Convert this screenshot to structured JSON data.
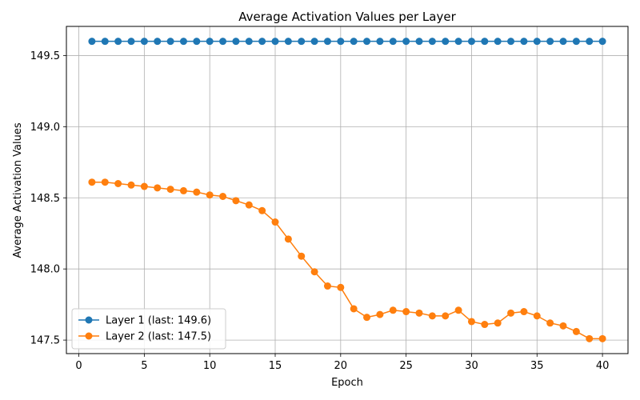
{
  "chart_data": {
    "type": "line",
    "title": "Average Activation Values per Layer",
    "xlabel": "Epoch",
    "ylabel": "Average Activation Values",
    "xlim": [
      -0.95,
      41.95
    ],
    "ylim": [
      147.405,
      149.705
    ],
    "xticks": [
      0,
      5,
      10,
      15,
      20,
      25,
      30,
      35,
      40
    ],
    "xtick_labels": [
      "0",
      "5",
      "10",
      "15",
      "20",
      "25",
      "30",
      "35",
      "40"
    ],
    "yticks": [
      147.5,
      148.0,
      148.5,
      149.0,
      149.5
    ],
    "ytick_labels": [
      "147.5",
      "148.0",
      "148.5",
      "149.0",
      "149.5"
    ],
    "grid": true,
    "legend_position": "lower-left",
    "x": [
      1,
      2,
      3,
      4,
      5,
      6,
      7,
      8,
      9,
      10,
      11,
      12,
      13,
      14,
      15,
      16,
      17,
      18,
      19,
      20,
      21,
      22,
      23,
      24,
      25,
      26,
      27,
      28,
      29,
      30,
      31,
      32,
      33,
      34,
      35,
      36,
      37,
      38,
      39,
      40
    ],
    "series": [
      {
        "name": "Layer 1 (last: 149.6)",
        "color": "#1f77b4",
        "values": [
          149.6,
          149.6,
          149.6,
          149.6,
          149.6,
          149.6,
          149.6,
          149.6,
          149.6,
          149.6,
          149.6,
          149.6,
          149.6,
          149.6,
          149.6,
          149.6,
          149.6,
          149.6,
          149.6,
          149.6,
          149.6,
          149.6,
          149.6,
          149.6,
          149.6,
          149.6,
          149.6,
          149.6,
          149.6,
          149.6,
          149.6,
          149.6,
          149.6,
          149.6,
          149.6,
          149.6,
          149.6,
          149.6,
          149.6,
          149.6
        ]
      },
      {
        "name": "Layer 2 (last: 147.5)",
        "color": "#ff7f0e",
        "values": [
          148.61,
          148.61,
          148.6,
          148.59,
          148.58,
          148.57,
          148.56,
          148.55,
          148.54,
          148.52,
          148.51,
          148.48,
          148.45,
          148.41,
          148.33,
          148.21,
          148.09,
          147.98,
          147.88,
          147.87,
          147.72,
          147.66,
          147.68,
          147.71,
          147.7,
          147.69,
          147.67,
          147.67,
          147.71,
          147.63,
          147.61,
          147.62,
          147.69,
          147.7,
          147.67,
          147.62,
          147.6,
          147.56,
          147.51,
          147.51
        ]
      }
    ]
  }
}
